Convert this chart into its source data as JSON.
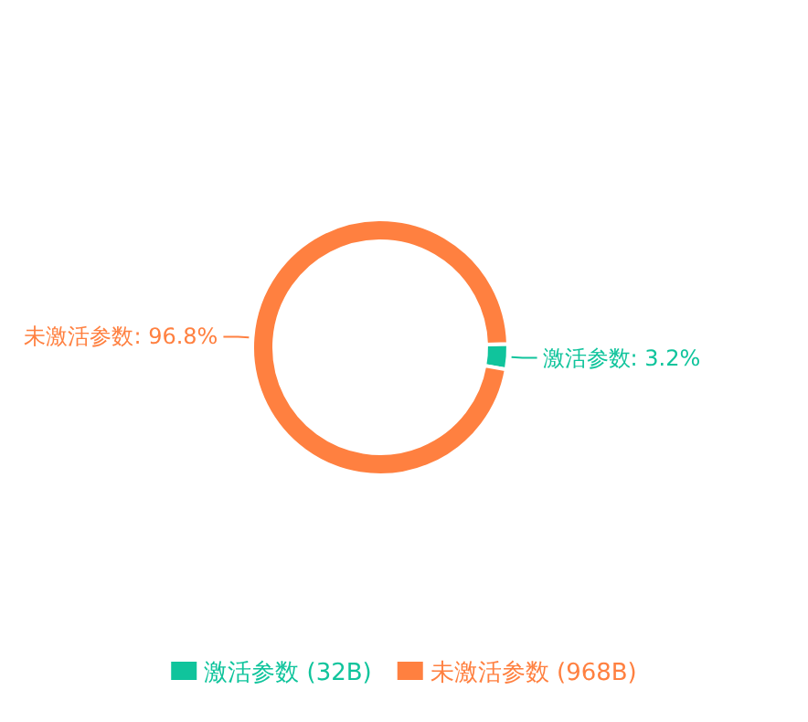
{
  "chart_data": {
    "type": "donut",
    "categories": [
      "激活参数 (32B)",
      "未激活参数 (968B)"
    ],
    "values": [
      3.2,
      96.8
    ],
    "colors": [
      "#10c49c",
      "#ff8040"
    ],
    "value_labels": [
      "激活参数: 3.2%",
      "未激活参数: 96.8%"
    ],
    "legend": "bottom"
  }
}
